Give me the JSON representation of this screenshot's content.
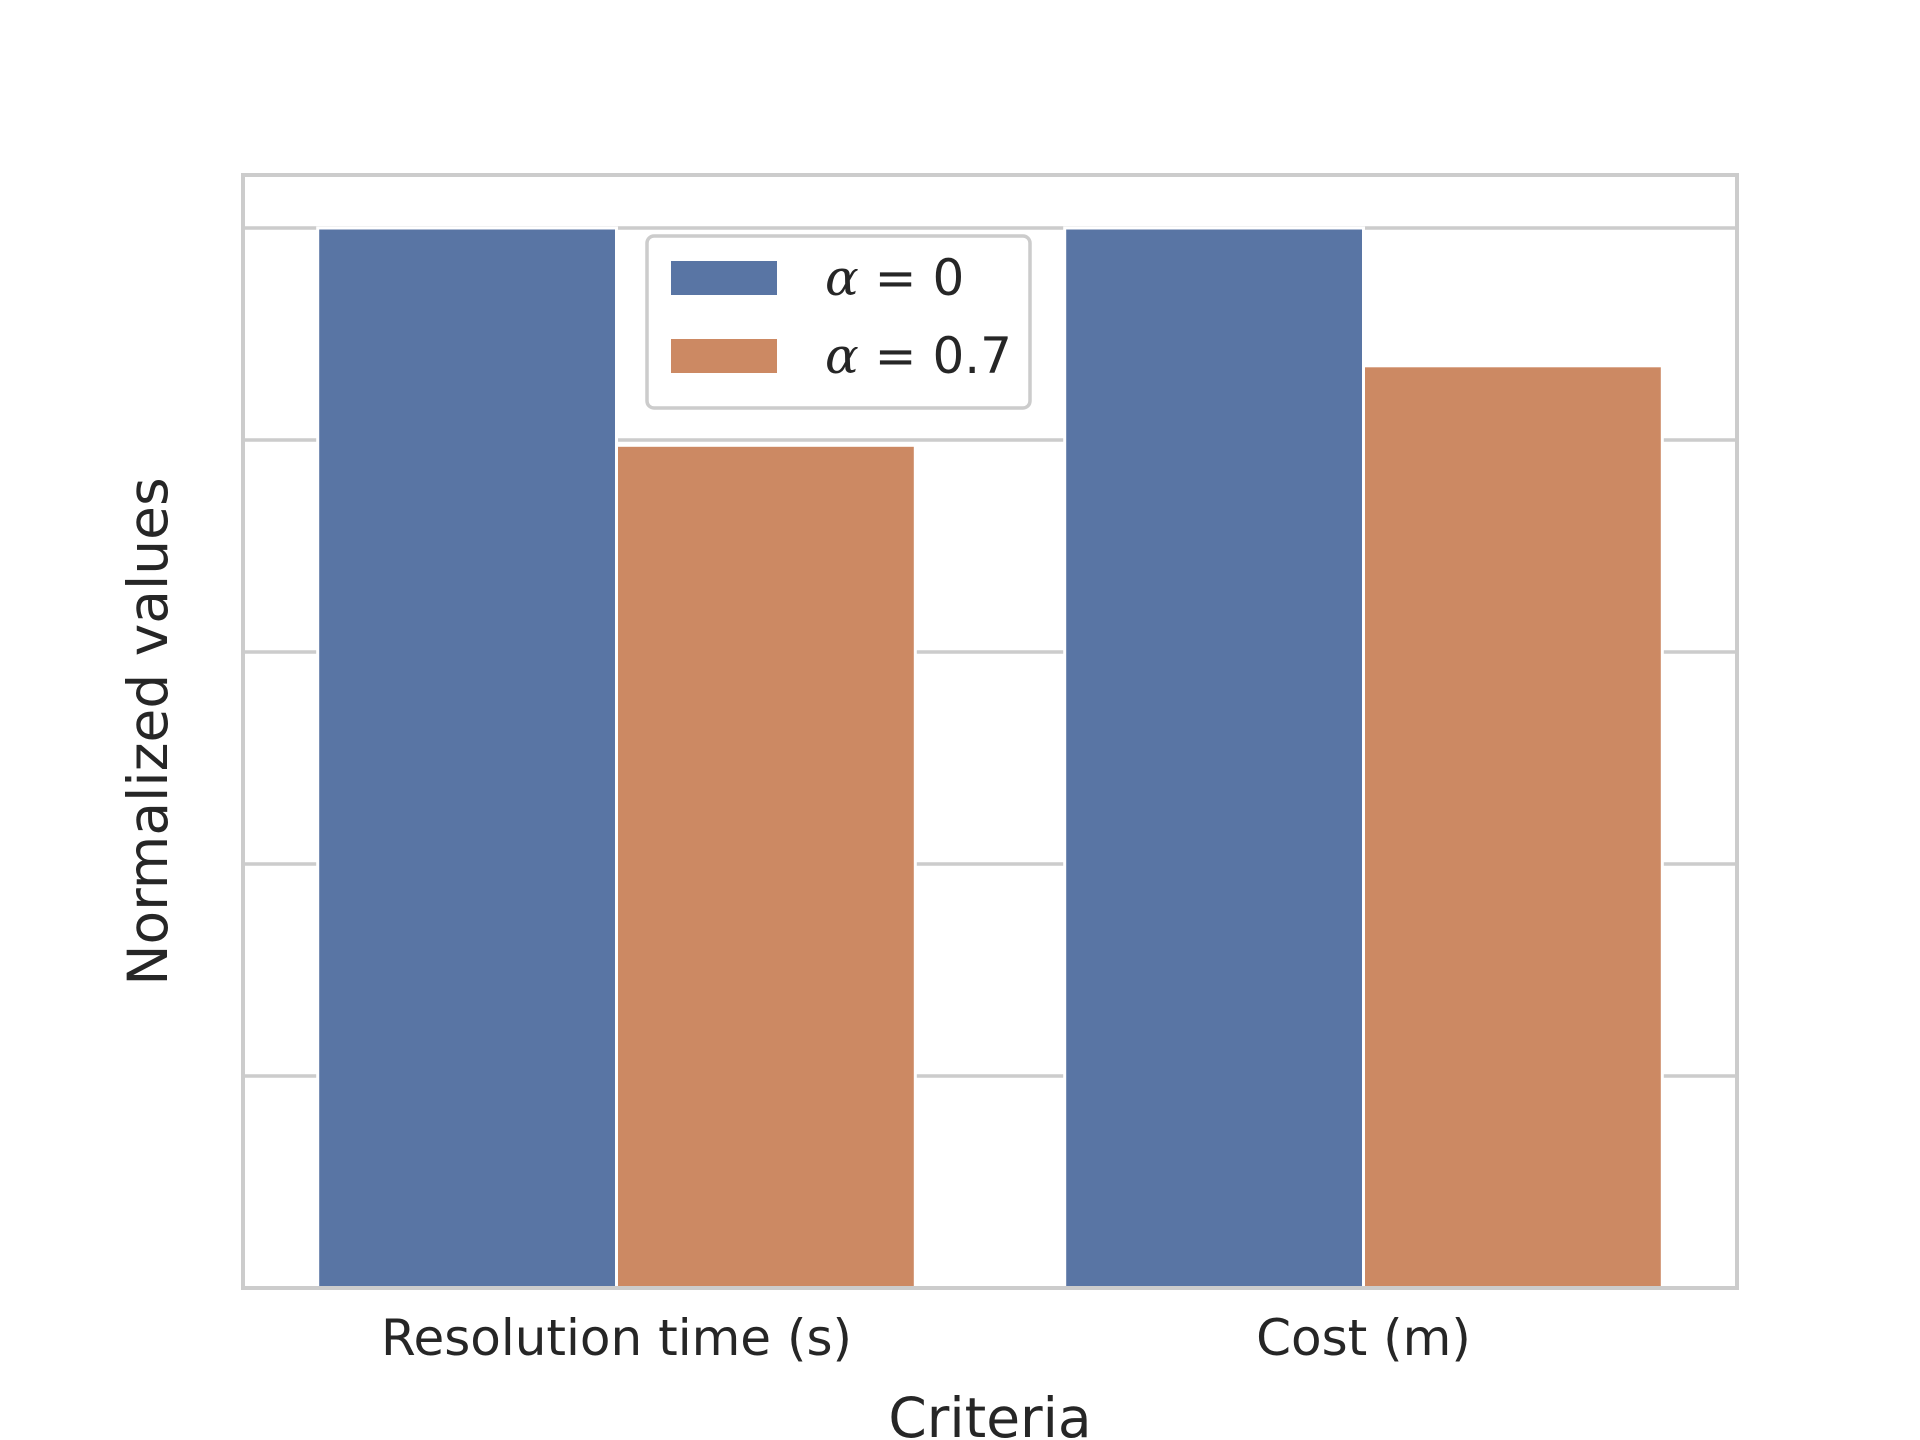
{
  "chart_data": {
    "type": "bar",
    "xlabel": "Criteria",
    "ylabel": "Normalized values",
    "categories": [
      "Resolution time (s)",
      "Cost (m)"
    ],
    "series": [
      {
        "name": "α = 0",
        "symbol": "α",
        "rhs": "0",
        "values": [
          1.0,
          1.0
        ],
        "color": "#5975a4"
      },
      {
        "name": "α = 0.7",
        "symbol": "α",
        "rhs": "0.7",
        "values": [
          0.795,
          0.87
        ],
        "color": "#cc8963"
      }
    ],
    "ylim": [
      0,
      1.05
    ],
    "yticks": [
      0,
      0.2,
      0.4,
      0.6,
      0.8,
      1.0
    ],
    "ytick_labels_visible": false,
    "grid": true,
    "legend": "upper-center",
    "colors": {
      "grid": "#cccccc",
      "spine": "#cccccc",
      "text": "#262626",
      "background": "#ffffff"
    }
  }
}
